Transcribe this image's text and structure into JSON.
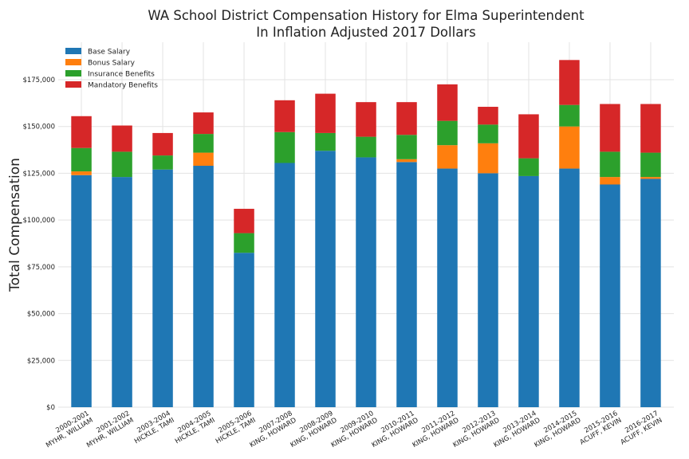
{
  "chart_data": {
    "type": "bar",
    "stacked": true,
    "title": "WA School District Compensation History for Elma Superintendent",
    "subtitle": "In Inflation Adjusted 2017 Dollars",
    "xlabel": "",
    "ylabel": "Total Compensation",
    "ylim": [
      0,
      195000
    ],
    "yticks": [
      0,
      25000,
      50000,
      75000,
      100000,
      125000,
      150000,
      175000
    ],
    "ytick_labels": [
      "$0",
      "$25,000",
      "$50,000",
      "$75,000",
      "$100,000",
      "$125,000",
      "$150,000",
      "$175,000"
    ],
    "grid": true,
    "legend_position": "top-left",
    "categories": [
      [
        "2000-2001",
        "MYHR, WILLIAM"
      ],
      [
        "2001-2002",
        "MYHR, WILLIAM"
      ],
      [
        "2003-2004",
        "HICKLE, TAMI"
      ],
      [
        "2004-2005",
        "HICKLE, TAMI"
      ],
      [
        "2005-2006",
        "HICKLE, TAMI"
      ],
      [
        "2007-2008",
        "KING, HOWARD"
      ],
      [
        "2008-2009",
        "KING, HOWARD"
      ],
      [
        "2009-2010",
        "KING, HOWARD"
      ],
      [
        "2010-2011",
        "KING, HOWARD"
      ],
      [
        "2011-2012",
        "KING, HOWARD"
      ],
      [
        "2012-2013",
        "KING, HOWARD"
      ],
      [
        "2013-2014",
        "KING, HOWARD"
      ],
      [
        "2014-2015",
        "KING, HOWARD"
      ],
      [
        "2015-2016",
        "ACUFF, KEVIN"
      ],
      [
        "2016-2017",
        "ACUFF, KEVIN"
      ]
    ],
    "series": [
      {
        "name": "Base Salary",
        "color": "#1f77b4",
        "values": [
          124000,
          123000,
          127000,
          129000,
          82500,
          130500,
          137000,
          133500,
          131000,
          127500,
          125000,
          123500,
          127500,
          119000,
          122000
        ]
      },
      {
        "name": "Bonus Salary",
        "color": "#ff7f0e",
        "values": [
          2000,
          0,
          0,
          7000,
          0,
          0,
          0,
          0,
          1500,
          12500,
          16000,
          0,
          22500,
          4000,
          1000
        ]
      },
      {
        "name": "Insurance Benefits",
        "color": "#2ca02c",
        "values": [
          12500,
          13500,
          7500,
          10000,
          10500,
          16500,
          9500,
          11000,
          13000,
          13000,
          10000,
          9500,
          11500,
          13500,
          13000
        ]
      },
      {
        "name": "Mandatory Benefits",
        "color": "#d62728",
        "values": [
          17000,
          14000,
          12000,
          11500,
          13000,
          17000,
          21000,
          18500,
          17500,
          19500,
          9500,
          23500,
          24000,
          25500,
          26000
        ]
      }
    ]
  }
}
